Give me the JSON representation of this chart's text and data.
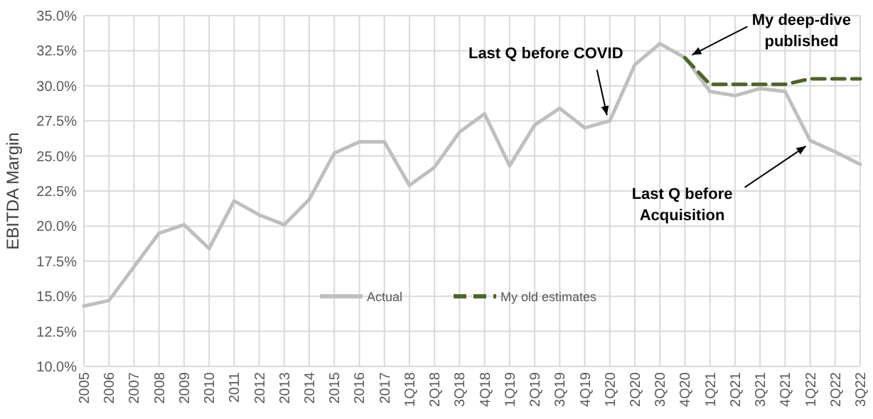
{
  "chart_data": {
    "type": "line",
    "ylabel": "EBITDA Margin",
    "categories": [
      "2005",
      "2006",
      "2007",
      "2008",
      "2009",
      "2010",
      "2011",
      "2012",
      "2013",
      "2014",
      "2015",
      "2016",
      "2017",
      "1Q18",
      "2Q18",
      "3Q18",
      "4Q18",
      "1Q19",
      "2Q19",
      "3Q19",
      "4Q19",
      "1Q20",
      "2Q20",
      "3Q20",
      "4Q20",
      "1Q21",
      "2Q21",
      "3Q21",
      "4Q21",
      "1Q22",
      "2Q22",
      "3Q22"
    ],
    "series": [
      {
        "name": "Actual",
        "color": "#bfbfbf",
        "line_style": "solid",
        "values": [
          14.3,
          14.7,
          17.1,
          19.5,
          20.1,
          18.4,
          21.8,
          20.8,
          20.1,
          21.9,
          25.2,
          26.0,
          26.0,
          22.9,
          24.2,
          26.7,
          28.0,
          24.3,
          27.2,
          28.4,
          27.0,
          27.5,
          31.5,
          33.0,
          32.0,
          29.6,
          29.3,
          29.8,
          29.6,
          26.1,
          25.3,
          24.4
        ]
      },
      {
        "name": "My old estimates",
        "color": "#4f6228",
        "line_style": "dashed",
        "values": [
          null,
          null,
          null,
          null,
          null,
          null,
          null,
          null,
          null,
          null,
          null,
          null,
          null,
          null,
          null,
          null,
          null,
          null,
          null,
          null,
          null,
          null,
          null,
          null,
          32.0,
          30.1,
          30.1,
          30.1,
          30.1,
          30.5,
          30.5,
          30.5
        ]
      }
    ],
    "ylim": [
      10,
      35
    ],
    "yticks": [
      {
        "value": 10,
        "label": "10.0%"
      },
      {
        "value": 12.5,
        "label": "12.5%"
      },
      {
        "value": 15,
        "label": "15.0%"
      },
      {
        "value": 17.5,
        "label": "17.5%"
      },
      {
        "value": 20,
        "label": "20.0%"
      },
      {
        "value": 22.5,
        "label": "22.5%"
      },
      {
        "value": 25,
        "label": "25.0%"
      },
      {
        "value": 27.5,
        "label": "27.5%"
      },
      {
        "value": 30,
        "label": "30.0%"
      },
      {
        "value": 32.5,
        "label": "32.5%"
      },
      {
        "value": 35,
        "label": "35.0%"
      }
    ],
    "grid": true,
    "legend": "bottom",
    "marker": "none",
    "annotations": [
      {
        "text": "Last Q before COVID",
        "x": "1Q20",
        "y": 27.5
      },
      {
        "text": "My deep-dive published",
        "x": "4Q20",
        "y": 32.0
      },
      {
        "text": "Last Q before Acquisition",
        "x": "1Q22",
        "y": 26.1
      }
    ]
  }
}
